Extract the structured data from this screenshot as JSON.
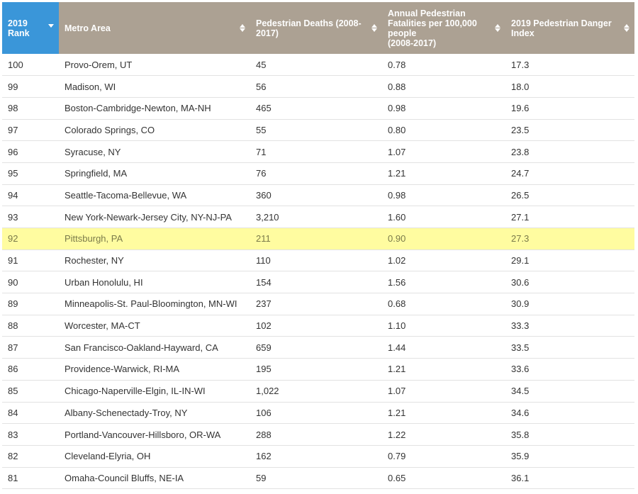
{
  "table": {
    "columns": [
      {
        "label": "2019\nRank",
        "sort_icon": "sort-desc-icon"
      },
      {
        "label": "Metro Area",
        "sort_icon": "sort-icon"
      },
      {
        "label": "Pedestrian Deaths (2008-2017)",
        "sort_icon": "sort-icon"
      },
      {
        "label": "Annual Pedestrian Fatalities per 100,000 people\n(2008-2017)",
        "sort_icon": "sort-icon"
      },
      {
        "label": "2019 Pedestrian Danger Index",
        "sort_icon": "sort-icon"
      }
    ],
    "header_colors": {
      "default": "#aca193",
      "active": "#3a96d9"
    },
    "highlight_color": "#fffca0",
    "rows": [
      {
        "rank": "100",
        "metro": "Provo-Orem, UT",
        "deaths": "45",
        "rate": "0.78",
        "index": "17.3"
      },
      {
        "rank": "99",
        "metro": "Madison, WI",
        "deaths": "56",
        "rate": "0.88",
        "index": "18.0"
      },
      {
        "rank": "98",
        "metro": "Boston-Cambridge-Newton, MA-NH",
        "deaths": "465",
        "rate": "0.98",
        "index": "19.6"
      },
      {
        "rank": "97",
        "metro": "Colorado Springs, CO",
        "deaths": "55",
        "rate": "0.80",
        "index": "23.5"
      },
      {
        "rank": "96",
        "metro": "Syracuse, NY",
        "deaths": "71",
        "rate": "1.07",
        "index": "23.8"
      },
      {
        "rank": "95",
        "metro": "Springfield, MA",
        "deaths": "76",
        "rate": "1.21",
        "index": "24.7"
      },
      {
        "rank": "94",
        "metro": "Seattle-Tacoma-Bellevue, WA",
        "deaths": "360",
        "rate": "0.98",
        "index": "26.5"
      },
      {
        "rank": "93",
        "metro": "New York-Newark-Jersey City, NY-NJ-PA",
        "deaths": "3,210",
        "rate": "1.60",
        "index": "27.1"
      },
      {
        "rank": "92",
        "metro": "Pittsburgh, PA",
        "deaths": "211",
        "rate": "0.90",
        "index": "27.3",
        "highlight": true
      },
      {
        "rank": "91",
        "metro": "Rochester, NY",
        "deaths": "110",
        "rate": "1.02",
        "index": "29.1"
      },
      {
        "rank": "90",
        "metro": "Urban Honolulu, HI",
        "deaths": "154",
        "rate": "1.56",
        "index": "30.6"
      },
      {
        "rank": "89",
        "metro": "Minneapolis-St. Paul-Bloomington, MN-WI",
        "deaths": "237",
        "rate": "0.68",
        "index": "30.9"
      },
      {
        "rank": "88",
        "metro": "Worcester, MA-CT",
        "deaths": "102",
        "rate": "1.10",
        "index": "33.3"
      },
      {
        "rank": "87",
        "metro": "San Francisco-Oakland-Hayward, CA",
        "deaths": "659",
        "rate": "1.44",
        "index": "33.5"
      },
      {
        "rank": "86",
        "metro": "Providence-Warwick, RI-MA",
        "deaths": "195",
        "rate": "1.21",
        "index": "33.6"
      },
      {
        "rank": "85",
        "metro": "Chicago-Naperville-Elgin, IL-IN-WI",
        "deaths": "1,022",
        "rate": "1.07",
        "index": "34.5"
      },
      {
        "rank": "84",
        "metro": "Albany-Schenectady-Troy, NY",
        "deaths": "106",
        "rate": "1.21",
        "index": "34.6"
      },
      {
        "rank": "83",
        "metro": "Portland-Vancouver-Hillsboro, OR-WA",
        "deaths": "288",
        "rate": "1.22",
        "index": "35.8"
      },
      {
        "rank": "82",
        "metro": "Cleveland-Elyria, OH",
        "deaths": "162",
        "rate": "0.79",
        "index": "35.9"
      },
      {
        "rank": "81",
        "metro": "Omaha-Council Bluffs, NE-IA",
        "deaths": "59",
        "rate": "0.65",
        "index": "36.1"
      }
    ]
  }
}
